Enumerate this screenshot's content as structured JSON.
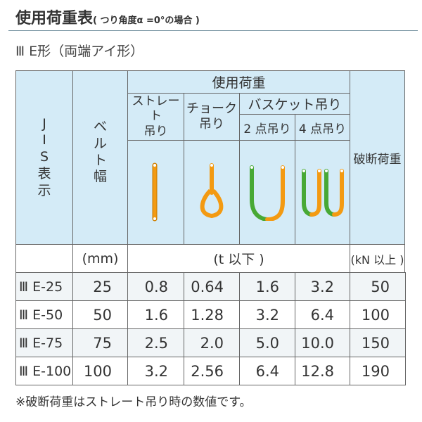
{
  "title": "使用荷重表",
  "title_note": "( つり角度α =0°の場合 )",
  "subtitle": "Ⅲ E形（両端アイ形）",
  "header": {
    "jis": [
      "J",
      "I",
      "S",
      "表",
      "示"
    ],
    "belt": [
      "ベ",
      "ル",
      "ト",
      "幅"
    ],
    "load": "使用荷重",
    "straight": [
      "ストレート",
      "吊り"
    ],
    "choke": [
      "チョーク",
      "吊り"
    ],
    "basket": "バスケット吊り",
    "two_point": "2 点吊り",
    "four_point": "4 点吊り",
    "break": "破断荷重"
  },
  "icons": [
    "straight-sling-icon",
    "choke-sling-icon",
    "basket-2point-icon",
    "basket-4point-icon"
  ],
  "colors": {
    "header_bg": "#d4ebf7",
    "orange": "#f39a12",
    "green": "#48a935"
  },
  "units": {
    "belt": "(mm)",
    "load": "(t 以下 )",
    "break": "(kN 以上 )"
  },
  "rows": [
    [
      "Ⅲ E-25",
      "25",
      "0.8",
      "0.64",
      "1.6",
      "3.2",
      "50"
    ],
    [
      "Ⅲ E-50",
      "50",
      "1.6",
      "1.28",
      "3.2",
      "6.4",
      "100"
    ],
    [
      "Ⅲ E-75",
      "75",
      "2.5",
      "2.0",
      "5.0",
      "10.0",
      "150"
    ],
    [
      "Ⅲ E-100",
      "100",
      "3.2",
      "2.56",
      "6.4",
      "12.8",
      "190"
    ]
  ],
  "note": "※破断荷重はストレート吊り時の数値です。"
}
